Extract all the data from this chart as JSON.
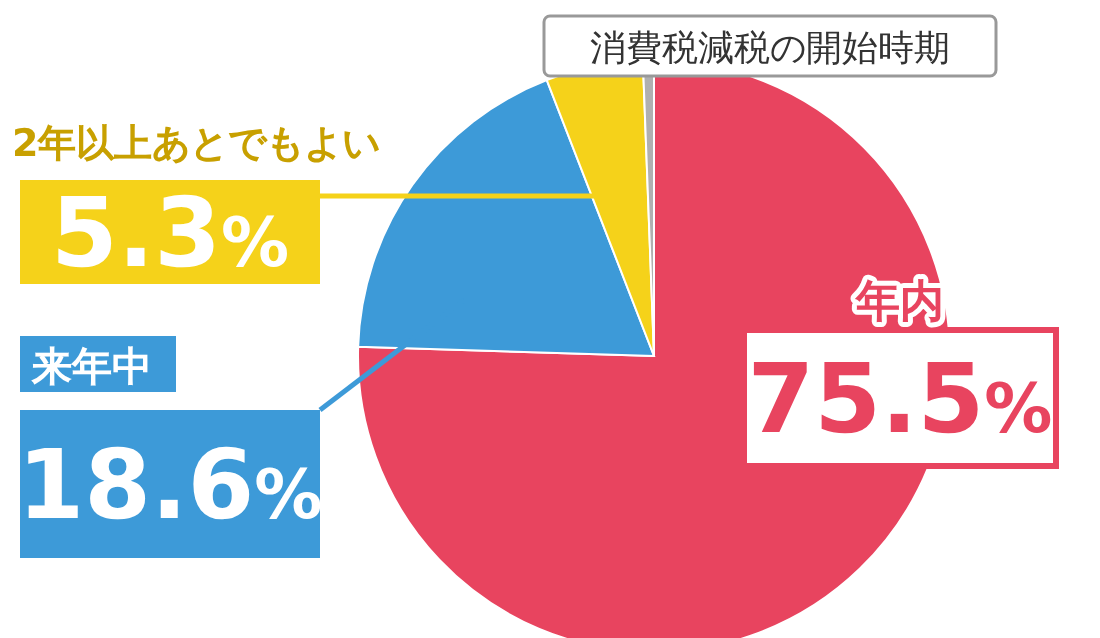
{
  "chart_data": {
    "type": "pie",
    "title": "消費税減税の開始時期",
    "categories": [
      "年内",
      "来年中",
      "2年以上あとでもよい",
      null
    ],
    "values": [
      75.5,
      18.6,
      5.3,
      0.6
    ],
    "colors": [
      "#e8445f",
      "#3d9ad8",
      "#f5d21a",
      "#b0b0b0"
    ],
    "value_labels": [
      "75.5%",
      "18.6%",
      "5.3%",
      null
    ]
  }
}
